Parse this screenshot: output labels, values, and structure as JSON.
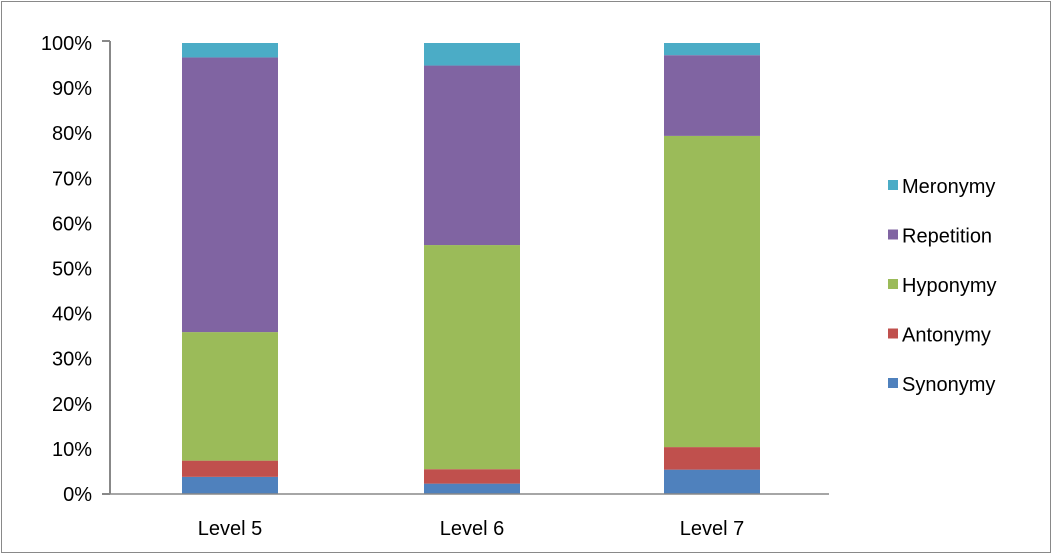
{
  "chart_data": {
    "type": "bar",
    "stacked": true,
    "title": "",
    "xlabel": "",
    "ylabel": "",
    "categories": [
      "Level 5",
      "Level 6",
      "Level 7"
    ],
    "y_ticks": [
      "0%",
      "10%",
      "20%",
      "30%",
      "40%",
      "50%",
      "60%",
      "70%",
      "80%",
      "90%",
      "100%"
    ],
    "ylim": [
      0,
      100
    ],
    "grid": false,
    "legend_position": "right",
    "series": [
      {
        "name": "Synonymy",
        "color": "#4F81BD",
        "values": [
          3.8,
          2.3,
          5.4
        ]
      },
      {
        "name": "Antonymy",
        "color": "#C0504D",
        "values": [
          3.6,
          3.2,
          5.0
        ]
      },
      {
        "name": "Hyponymy",
        "color": "#9BBB59",
        "values": [
          28.5,
          49.7,
          69.0
        ]
      },
      {
        "name": "Repetition",
        "color": "#8064A2",
        "values": [
          60.9,
          39.8,
          17.9
        ]
      },
      {
        "name": "Meronymy",
        "color": "#4BACC6",
        "values": [
          3.2,
          5.0,
          2.7
        ]
      }
    ],
    "legend_order": [
      "Meronymy",
      "Repetition",
      "Hyponymy",
      "Antonymy",
      "Synonymy"
    ]
  }
}
